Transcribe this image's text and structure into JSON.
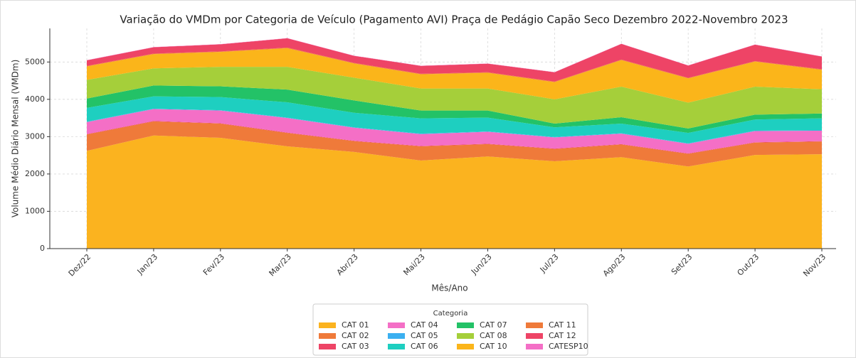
{
  "chart_data": {
    "type": "stacked_area",
    "title": "Variação do VMDm por Categoria de Veículo (Pagamento AVI) Praça de Pedágio Capão Seco Dezembro 2022-Novembro 2023",
    "xlabel": "Mês/Ano",
    "ylabel": "Volume Médio Diário Mensal (VMDm)",
    "legend_title": "Categoria",
    "legend_position": "bottom",
    "categories": [
      "Dez/22",
      "Jan/23",
      "Fev/23",
      "Mar/23",
      "Abr/23",
      "Mai/23",
      "Jun/23",
      "Jul/23",
      "Ago/23",
      "Set/23",
      "Out/23",
      "Nov/23"
    ],
    "ylim": [
      0,
      5900
    ],
    "yticks": [
      0,
      1000,
      2000,
      3000,
      4000,
      5000
    ],
    "grid": true,
    "series": [
      {
        "name": "CAT 01",
        "color": "#fbb31f",
        "values": [
          2620,
          3030,
          2970,
          2740,
          2590,
          2360,
          2470,
          2340,
          2450,
          2200,
          2510,
          2530
        ]
      },
      {
        "name": "CAT 02",
        "color": "#ef7a3a",
        "values": [
          440,
          380,
          380,
          360,
          290,
          380,
          330,
          330,
          340,
          340,
          330,
          340
        ]
      },
      {
        "name": "CAT 03",
        "color": "#ee4466",
        "values": [
          10,
          10,
          10,
          10,
          10,
          10,
          10,
          10,
          10,
          10,
          10,
          10
        ]
      },
      {
        "name": "CAT 04",
        "color": "#f46fc6",
        "values": [
          320,
          320,
          340,
          390,
          350,
          320,
          320,
          300,
          280,
          260,
          300,
          280
        ]
      },
      {
        "name": "CAT 05",
        "color": "#3bb0f0",
        "values": [
          10,
          10,
          10,
          10,
          10,
          10,
          10,
          10,
          10,
          10,
          10,
          10
        ]
      },
      {
        "name": "CAT 06",
        "color": "#1ecfc0",
        "values": [
          370,
          330,
          350,
          410,
          390,
          410,
          370,
          260,
          260,
          280,
          300,
          320
        ]
      },
      {
        "name": "CAT 07",
        "color": "#23c267",
        "values": [
          250,
          290,
          290,
          340,
          330,
          210,
          190,
          100,
          170,
          120,
          130,
          130
        ]
      },
      {
        "name": "CAT 08",
        "color": "#a5cf3a",
        "values": [
          500,
          460,
          520,
          610,
          610,
          590,
          590,
          650,
          820,
          690,
          750,
          650
        ]
      },
      {
        "name": "CAT 10",
        "color": "#fbb51a",
        "values": [
          360,
          380,
          400,
          500,
          380,
          380,
          420,
          460,
          710,
          650,
          670,
          520
        ]
      },
      {
        "name": "CAT 11",
        "color": "#ef7a3a",
        "values": [
          15,
          15,
          15,
          15,
          15,
          15,
          15,
          15,
          15,
          15,
          15,
          15
        ]
      },
      {
        "name": "CAT 12",
        "color": "#ee4466",
        "values": [
          150,
          170,
          190,
          250,
          190,
          210,
          230,
          250,
          420,
          330,
          440,
          340
        ]
      },
      {
        "name": "CATESP10",
        "color": "#f46fc6",
        "values": [
          5,
          5,
          5,
          5,
          5,
          5,
          5,
          5,
          5,
          5,
          5,
          5
        ]
      }
    ]
  }
}
